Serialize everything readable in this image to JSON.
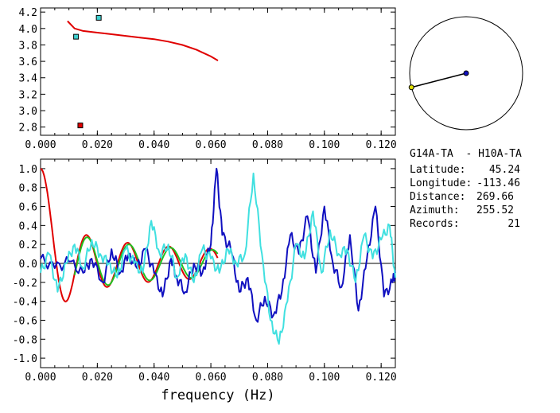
{
  "chart_data": [
    {
      "type": "scatter",
      "xlim": [
        0.0,
        0.125
      ],
      "ylim": [
        2.7,
        4.25
      ],
      "xticks": [
        "0.000",
        "0.020",
        "0.040",
        "0.060",
        "0.080",
        "0.100",
        "0.120"
      ],
      "yticks": [
        "2.8",
        "3.0",
        "3.2",
        "3.4",
        "3.6",
        "3.8",
        "4.0",
        "4.2"
      ],
      "grid": false,
      "series": [
        {
          "color": "#e00000",
          "kind": "line",
          "x": [
            0.0095,
            0.012,
            0.015,
            0.02,
            0.025,
            0.03,
            0.035,
            0.04,
            0.045,
            0.05,
            0.055,
            0.06,
            0.0625
          ],
          "y": [
            4.09,
            4.0,
            3.97,
            3.95,
            3.93,
            3.91,
            3.89,
            3.87,
            3.84,
            3.8,
            3.74,
            3.66,
            3.61
          ]
        },
        {
          "color": "#40d0d0",
          "kind": "square",
          "x": [
            0.0125,
            0.0205
          ],
          "y": [
            3.9,
            4.13
          ]
        },
        {
          "color": "#e00000",
          "kind": "square",
          "x": [
            0.014
          ],
          "y": [
            2.82
          ]
        }
      ]
    },
    {
      "type": "line",
      "xlim": [
        0.0,
        0.125
      ],
      "ylim": [
        -1.1,
        1.1
      ],
      "xticks": [
        "0.000",
        "0.020",
        "0.040",
        "0.060",
        "0.080",
        "0.100",
        "0.120"
      ],
      "yticks": [
        "1.0",
        "0.8",
        "0.6",
        "0.4",
        "0.2",
        "0.0",
        "-0.2",
        "-0.4",
        "-0.6",
        "-0.8",
        "-1.0"
      ],
      "xlabel": "frequency (Hz)",
      "grid": false,
      "series": [
        {
          "color": "#e00000",
          "kind": "bessel",
          "x_end": 0.0625
        },
        {
          "color": "#20c020",
          "kind": "bessel_env",
          "x_start": 0.012,
          "x_end": 0.0625
        },
        {
          "color": "#1010c0",
          "kind": "noisy",
          "x": [
            0.0,
            0.005,
            0.01,
            0.015,
            0.018,
            0.022,
            0.025,
            0.028,
            0.031,
            0.034,
            0.037,
            0.04,
            0.043,
            0.046,
            0.048,
            0.051,
            0.054,
            0.057,
            0.06,
            0.062,
            0.064,
            0.067,
            0.07,
            0.073,
            0.076,
            0.079,
            0.082,
            0.085,
            0.088,
            0.091,
            0.094,
            0.097,
            0.1,
            0.103,
            0.106,
            0.109,
            0.112,
            0.115,
            0.118,
            0.121,
            0.124,
            0.125
          ],
          "y": [
            0.05,
            -0.05,
            0.02,
            -0.1,
            0.05,
            -0.2,
            0.15,
            -0.1,
            0.1,
            -0.05,
            0.15,
            -0.1,
            -0.35,
            0.05,
            -0.15,
            -0.3,
            0.0,
            -0.1,
            0.2,
            1.0,
            0.3,
            0.15,
            -0.3,
            -0.15,
            -0.6,
            -0.35,
            -0.55,
            -0.3,
            0.3,
            0.1,
            0.5,
            -0.1,
            0.6,
            0.0,
            -0.25,
            0.3,
            -0.5,
            0.05,
            0.6,
            -0.35,
            -0.2,
            -0.1
          ]
        },
        {
          "color": "#40e0e0",
          "kind": "noisy",
          "x": [
            0.0,
            0.003,
            0.006,
            0.009,
            0.012,
            0.015,
            0.018,
            0.021,
            0.024,
            0.027,
            0.03,
            0.033,
            0.036,
            0.039,
            0.042,
            0.045,
            0.048,
            0.051,
            0.054,
            0.057,
            0.06,
            0.063,
            0.066,
            0.069,
            0.072,
            0.075,
            0.078,
            0.081,
            0.084,
            0.087,
            0.09,
            0.093,
            0.096,
            0.099,
            0.102,
            0.105,
            0.108,
            0.111,
            0.114,
            0.117,
            0.12,
            0.123,
            0.125
          ],
          "y": [
            -0.1,
            0.1,
            -0.3,
            0.0,
            0.2,
            -0.05,
            0.25,
            0.1,
            0.0,
            -0.15,
            0.15,
            0.0,
            -0.1,
            0.45,
            0.1,
            0.2,
            -0.15,
            0.1,
            -0.2,
            0.15,
            0.05,
            -0.1,
            0.15,
            0.0,
            0.1,
            0.95,
            0.1,
            -0.6,
            -0.85,
            -0.4,
            0.2,
            0.05,
            0.55,
            -0.1,
            0.35,
            0.1,
            0.15,
            -0.2,
            0.3,
            0.05,
            0.25,
            0.4,
            -0.15
          ]
        }
      ]
    }
  ],
  "info": {
    "pair": "G14A-TA  - H10A-TA",
    "latitude_label": "Latitude:",
    "latitude": "45.24",
    "longitude_label": "Longitude:",
    "longitude": "-113.46",
    "distance_label": "Distance:",
    "distance": "269.66",
    "azimuth_label": "Azimuth:",
    "azimuth": "255.52",
    "records_label": "Records:",
    "records": "21"
  },
  "compass": {
    "azimuth_deg": 255.52,
    "line_color": "#000000",
    "center_color": "#1010c0",
    "end_color": "#e0e000"
  }
}
